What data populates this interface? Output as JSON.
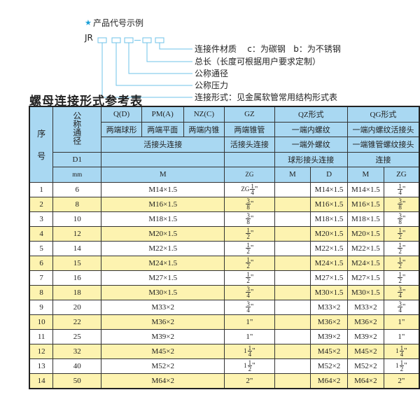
{
  "code_example": {
    "title": "产品代号示例",
    "star_icon": "star-icon",
    "prefix": "JR",
    "labels": [
      "连接件材质    c：为碳钢   b：为不锈钢",
      "总长（长度可根据用户要求定制）",
      "公称通径",
      "公称压力",
      "连接形式：见金属软管常用结构形式表"
    ]
  },
  "table_title": "螺母连接形式参考表",
  "colors": {
    "header_bg": "#a9d8f2",
    "row_alt": "#fdf3b0",
    "accent": "#1aa0d8"
  },
  "header": {
    "seq": "序\n\n号",
    "dn": "公称通径",
    "q": "Q(D)",
    "pm": "PM(A)",
    "nz": "NZ(C)",
    "gz": "GZ",
    "qz": "QZ形式",
    "qg": "QG形式",
    "q2": "两端球形",
    "pm2": "两端平面",
    "nz2": "两端内锥",
    "gz2": "两端锥管",
    "qz2": "一端内螺纹",
    "qg2": "一端内螺纹活接头",
    "r3a": "活接头连接",
    "r3b": "活接头连接",
    "qz3": "一端外螺纹",
    "qg3": "一端锥管螺纹接头",
    "d1": "D1",
    "qz4": "球形接头连接",
    "qg4": "连接",
    "mm": "mm",
    "m": "M",
    "zg": "ZG",
    "qzm": "M",
    "qzd": "D",
    "qgm": "M",
    "qgzg": "ZG"
  },
  "rows": [
    {
      "seq": "1",
      "dn": "6",
      "m": "M14×1.5",
      "zg": {
        "pre": "ZG",
        "n": "1",
        "d": "4"
      },
      "qzd": "M14×1.5",
      "qgm": "M14×1.5",
      "qgzg": {
        "pre": "",
        "n": "1",
        "d": "4"
      }
    },
    {
      "seq": "2",
      "dn": "8",
      "m": "M16×1.5",
      "zg": {
        "pre": "",
        "n": "3",
        "d": "8"
      },
      "qzd": "M16×1.5",
      "qgm": "M16×1.5",
      "qgzg": {
        "pre": "",
        "n": "3",
        "d": "8"
      }
    },
    {
      "seq": "3",
      "dn": "10",
      "m": "M18×1.5",
      "zg": {
        "pre": "",
        "n": "3",
        "d": "8"
      },
      "qzd": "M18×1.5",
      "qgm": "M18×1.5",
      "qgzg": {
        "pre": "",
        "n": "3",
        "d": "8"
      }
    },
    {
      "seq": "4",
      "dn": "12",
      "m": "M20×1.5",
      "zg": {
        "pre": "",
        "n": "1",
        "d": "2"
      },
      "qzd": "M20×1.5",
      "qgm": "M20×1.5",
      "qgzg": {
        "pre": "",
        "n": "1",
        "d": "2"
      }
    },
    {
      "seq": "5",
      "dn": "14",
      "m": "M22×1.5",
      "zg": {
        "pre": "",
        "n": "1",
        "d": "2"
      },
      "qzd": "M22×1.5",
      "qgm": "M22×1.5",
      "qgzg": {
        "pre": "",
        "n": "1",
        "d": "2"
      }
    },
    {
      "seq": "6",
      "dn": "15",
      "m": "M24×1.5",
      "zg": {
        "pre": "",
        "n": "1",
        "d": "2"
      },
      "qzd": "M24×1.5",
      "qgm": "M24×1.5",
      "qgzg": {
        "pre": "",
        "n": "1",
        "d": "2"
      }
    },
    {
      "seq": "7",
      "dn": "16",
      "m": "M27×1.5",
      "zg": {
        "pre": "",
        "n": "1",
        "d": "2"
      },
      "qzd": "M27×1.5",
      "qgm": "M27×1.5",
      "qgzg": {
        "pre": "",
        "n": "1",
        "d": "2"
      }
    },
    {
      "seq": "8",
      "dn": "18",
      "m": "M30×1.5",
      "zg": {
        "pre": "",
        "n": "3",
        "d": "4"
      },
      "qzd": "M30×1.5",
      "qgm": "M30×1.5",
      "qgzg": {
        "pre": "",
        "n": "3",
        "d": "4"
      }
    },
    {
      "seq": "9",
      "dn": "20",
      "m": "M33×2",
      "zg": {
        "pre": "",
        "n": "3",
        "d": "4"
      },
      "qzd": "M33×2",
      "qgm": "M33×2",
      "qgzg": {
        "pre": "",
        "n": "3",
        "d": "4"
      }
    },
    {
      "seq": "10",
      "dn": "22",
      "m": "M36×2",
      "zg": {
        "pre": "1\"",
        "n": "",
        "d": ""
      },
      "qzd": "M36×2",
      "qgm": "M36×2",
      "qgzg": {
        "pre": "1\"",
        "n": "",
        "d": ""
      }
    },
    {
      "seq": "11",
      "dn": "25",
      "m": "M39×2",
      "zg": {
        "pre": "1\"",
        "n": "",
        "d": ""
      },
      "qzd": "M39×2",
      "qgm": "M39×2",
      "qgzg": {
        "pre": "1\"",
        "n": "",
        "d": ""
      }
    },
    {
      "seq": "12",
      "dn": "32",
      "m": "M45×2",
      "zg": {
        "pre": "1",
        "n": "1",
        "d": "4"
      },
      "qzd": "M45×2",
      "qgm": "M45×2",
      "qgzg": {
        "pre": "1",
        "n": "1",
        "d": "4"
      }
    },
    {
      "seq": "13",
      "dn": "40",
      "m": "M52×2",
      "zg": {
        "pre": "1",
        "n": "1",
        "d": "2"
      },
      "qzd": "M52×2",
      "qgm": "M52×2",
      "qgzg": {
        "pre": "1",
        "n": "1",
        "d": "2"
      }
    },
    {
      "seq": "14",
      "dn": "50",
      "m": "M64×2",
      "zg": {
        "pre": "2\"",
        "n": "",
        "d": ""
      },
      "qzd": "M64×2",
      "qgm": "M64×2",
      "qgzg": {
        "pre": "2\"",
        "n": "",
        "d": ""
      }
    }
  ]
}
